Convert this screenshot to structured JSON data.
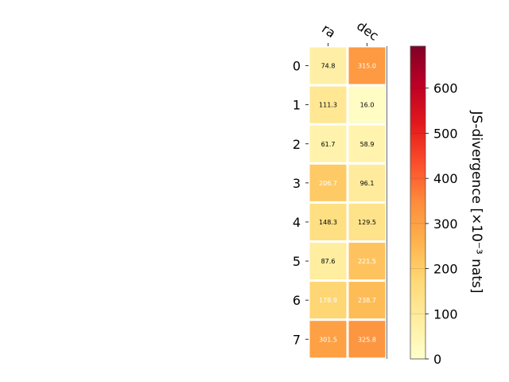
{
  "chart_data": {
    "type": "heatmap",
    "x_categories": [
      "ra",
      "dec"
    ],
    "y_categories": [
      "0",
      "1",
      "2",
      "3",
      "4",
      "5",
      "6",
      "7"
    ],
    "values": [
      [
        74.8,
        315.0
      ],
      [
        111.3,
        16.0
      ],
      [
        61.7,
        58.9
      ],
      [
        206.7,
        96.1
      ],
      [
        148.3,
        129.5
      ],
      [
        87.6,
        221.5
      ],
      [
        178.9,
        238.7
      ],
      [
        301.5,
        325.8
      ]
    ],
    "value_labels": [
      [
        "74.8",
        "315.0"
      ],
      [
        "111.3",
        "16.0"
      ],
      [
        "61.7",
        "58.9"
      ],
      [
        "206.7",
        "96.1"
      ],
      [
        "148.3",
        "129.5"
      ],
      [
        "87.6",
        "221.5"
      ],
      [
        "178.9",
        "238.7"
      ],
      [
        "301.5",
        "325.8"
      ]
    ],
    "colorbar": {
      "label": "JS-divergence [×10⁻³ nats]",
      "range": [
        0,
        693
      ],
      "ticks": [
        0,
        100,
        200,
        300,
        400,
        500,
        600
      ],
      "tick_labels": [
        "0",
        "100",
        "200",
        "300",
        "400",
        "500",
        "600"
      ],
      "colormap": "YlOrRd"
    },
    "grid": false,
    "legend": "none"
  }
}
